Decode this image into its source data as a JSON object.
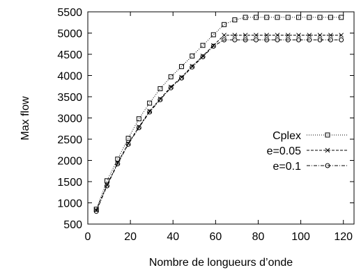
{
  "chart_data": {
    "type": "line",
    "title": "",
    "xlabel": "Nombre de longueurs d’onde",
    "ylabel": "Max flow",
    "xlim": [
      0,
      125
    ],
    "ylim": [
      500,
      5500
    ],
    "xticks": [
      0,
      20,
      40,
      60,
      80,
      100,
      120
    ],
    "yticks": [
      500,
      1000,
      1500,
      2000,
      2500,
      3000,
      3500,
      4000,
      4500,
      5000,
      5500
    ],
    "grid": false,
    "legend_position": "right",
    "x": [
      4,
      9,
      14,
      19,
      24,
      29,
      34,
      39,
      44,
      49,
      54,
      59,
      64,
      69,
      74,
      79,
      84,
      89,
      94,
      99,
      104,
      109,
      114,
      119
    ],
    "series": [
      {
        "name": "Cplex",
        "marker": "square",
        "line_style": "dotted",
        "values": [
          850,
          1520,
          2030,
          2520,
          2980,
          3350,
          3690,
          3970,
          4210,
          4460,
          4710,
          4960,
          5200,
          5310,
          5370,
          5370,
          5370,
          5370,
          5370,
          5370,
          5370,
          5370,
          5370,
          5370
        ]
      },
      {
        "name": "e=0.05",
        "marker": "cross",
        "line_style": "dashed",
        "values": [
          830,
          1420,
          1940,
          2400,
          2790,
          3160,
          3450,
          3730,
          3960,
          4220,
          4460,
          4710,
          4950,
          4950,
          4950,
          4950,
          4950,
          4950,
          4950,
          4950,
          4950,
          4950,
          4950,
          4950
        ]
      },
      {
        "name": "e=0.1",
        "marker": "circle",
        "line_style": "dashdot",
        "values": [
          800,
          1400,
          1920,
          2380,
          2770,
          3140,
          3430,
          3710,
          3940,
          4200,
          4440,
          4690,
          4840,
          4840,
          4840,
          4840,
          4840,
          4840,
          4840,
          4840,
          4840,
          4840,
          4840,
          4840
        ]
      }
    ]
  }
}
